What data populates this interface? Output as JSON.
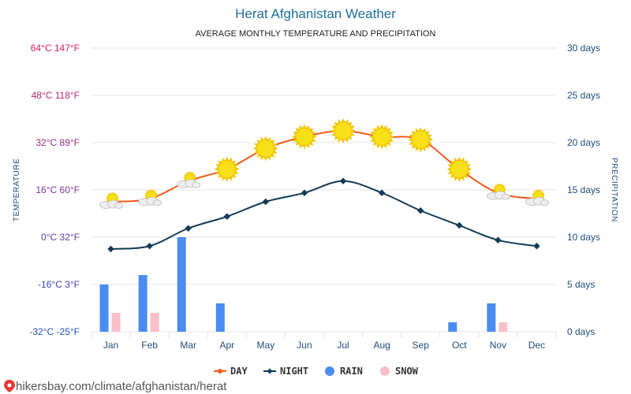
{
  "page": {
    "title": "Herat Afghanistan Weather",
    "subtitle": "AVERAGE MONTHLY TEMPERATURE AND PRECIPITATION",
    "source": "hikersbay.com/climate/afghanistan/herat"
  },
  "colors": {
    "day": "#f05a1a",
    "night": "#123b56",
    "rain": "#4a8cf2",
    "snow": "#f9bfc9",
    "temp_axis_top": "#d81b60",
    "temp_axis_bottom": "#1f4ec9",
    "precip_axis": "#1f4e79",
    "grid": "#e6e6e6",
    "sun": "#f7e018"
  },
  "chart_data": {
    "type": "line",
    "categories": [
      "Jan",
      "Feb",
      "Mar",
      "Apr",
      "May",
      "Jun",
      "Jul",
      "Aug",
      "Sep",
      "Oct",
      "Nov",
      "Dec"
    ],
    "series": [
      {
        "name": "DAY",
        "axis": "temperature",
        "unit": "°C",
        "values": [
          12,
          13,
          19,
          23,
          30,
          34,
          36,
          34,
          33,
          23,
          15,
          13
        ]
      },
      {
        "name": "NIGHT",
        "axis": "temperature",
        "unit": "°C",
        "values": [
          -4,
          -3,
          3,
          7,
          12,
          15,
          19,
          15,
          9,
          4,
          -1,
          -3
        ]
      },
      {
        "name": "RAIN",
        "axis": "precipitation",
        "type": "bar",
        "unit": "days",
        "values": [
          5,
          6,
          10,
          3,
          0,
          0,
          0,
          0,
          0,
          1,
          3,
          0
        ]
      },
      {
        "name": "SNOW",
        "axis": "precipitation",
        "type": "bar",
        "unit": "days",
        "values": [
          2,
          2,
          0,
          0,
          0,
          0,
          0,
          0,
          0,
          0,
          1,
          0
        ]
      }
    ],
    "weather_icons": [
      "sun-cloud-icon",
      "sun-cloud-icon",
      "sun-cloud-icon",
      "sun-icon",
      "sun-icon",
      "sun-icon",
      "sun-icon",
      "sun-icon",
      "sun-icon",
      "sun-icon",
      "sun-cloud-icon",
      "sun-cloud-icon"
    ],
    "y_left": {
      "label": "TEMPERATURE",
      "range": [
        -32,
        64
      ],
      "ticks": [
        64,
        48,
        32,
        16,
        0,
        -16,
        -32
      ],
      "tick_labels": [
        "64°C 147°F",
        "48°C 118°F",
        "32°C 89°F",
        "16°C 60°F",
        "0°C 32°F",
        "-16°C 3°F",
        "-32°C -25°F"
      ]
    },
    "y_right": {
      "label": "PRECIPITATION",
      "range": [
        0,
        30
      ],
      "ticks": [
        30,
        25,
        20,
        15,
        10,
        5,
        0
      ],
      "tick_labels": [
        "30 days",
        "25 days",
        "20 days",
        "15 days",
        "10 days",
        "5 days",
        "0 days"
      ]
    },
    "grid": true,
    "legend": {
      "position": "bottom-center",
      "items": [
        {
          "label": "DAY",
          "icon": "line-dot-icon"
        },
        {
          "label": "NIGHT",
          "icon": "line-diamond-icon"
        },
        {
          "label": "RAIN",
          "icon": "circle-icon"
        },
        {
          "label": "SNOW",
          "icon": "circle-icon"
        }
      ]
    }
  }
}
